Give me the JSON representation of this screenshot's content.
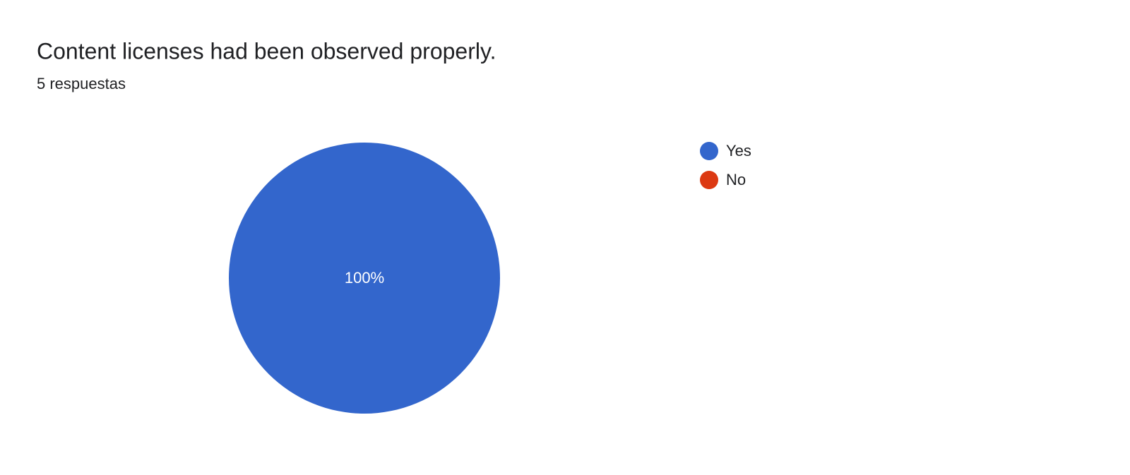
{
  "chart_data": {
    "type": "pie",
    "title": "Content licenses had been observed properly.",
    "subtitle": "5 respuestas",
    "categories": [
      "Yes",
      "No"
    ],
    "values": [
      100,
      0
    ],
    "value_labels": [
      "100%",
      null
    ],
    "colors": [
      "#3366cc",
      "#dc3912"
    ],
    "legend": "right"
  }
}
